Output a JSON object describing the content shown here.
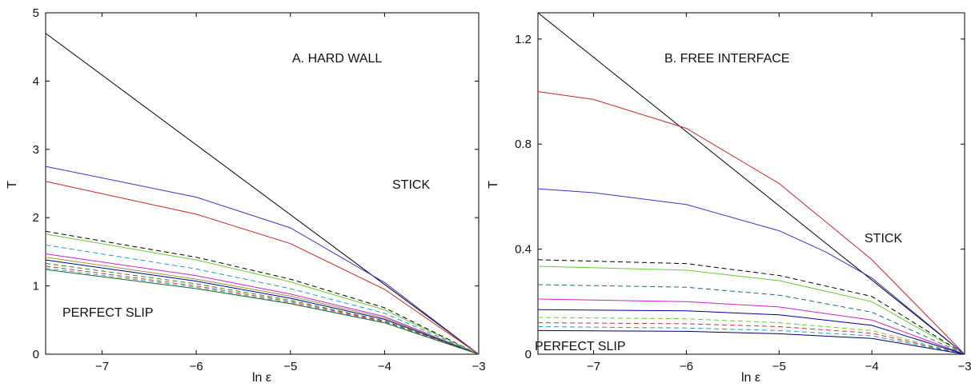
{
  "chart_data": [
    {
      "type": "line",
      "annotations": {
        "title": "A. HARD WALL",
        "top": "STICK",
        "bottom": "PERFECT SLIP"
      },
      "xlabel": "ln ε",
      "ylabel": "T",
      "xlim": [
        -7.6,
        -3
      ],
      "ylim": [
        0,
        5
      ],
      "xticks": [
        -7,
        -6,
        -5,
        -4,
        -3
      ],
      "xtick_labels": [
        "−7",
        "−6",
        "−5",
        "−4",
        "−3"
      ],
      "yticks": [
        0,
        1,
        2,
        3,
        4,
        5
      ],
      "ytick_labels": [
        "0",
        "1",
        "2",
        "3",
        "4",
        "5"
      ],
      "grid": false,
      "series": [
        {
          "color": "#000000",
          "dash": "solid",
          "x": [
            -7.6,
            -3
          ],
          "y": [
            4.7,
            0
          ]
        },
        {
          "color": "#3333cc",
          "dash": "solid",
          "x": [
            -7.6,
            -6,
            -5,
            -4,
            -3
          ],
          "y": [
            2.75,
            2.3,
            1.85,
            1.05,
            0
          ]
        },
        {
          "color": "#cc2222",
          "dash": "solid",
          "x": [
            -7.6,
            -6,
            -5,
            -4,
            -3
          ],
          "y": [
            2.53,
            2.05,
            1.62,
            0.95,
            0
          ]
        },
        {
          "color": "#000000",
          "dash": "dashed",
          "x": [
            -7.6,
            -6,
            -5,
            -4,
            -3
          ],
          "y": [
            1.8,
            1.42,
            1.1,
            0.68,
            0
          ]
        },
        {
          "color": "#66cc33",
          "dash": "solid",
          "x": [
            -7.6,
            -6,
            -5,
            -4,
            -3
          ],
          "y": [
            1.76,
            1.38,
            1.06,
            0.65,
            0
          ]
        },
        {
          "color": "#2299cc",
          "dash": "dashed",
          "x": [
            -7.6,
            -6,
            -5,
            -4,
            -3
          ],
          "y": [
            1.6,
            1.25,
            0.96,
            0.6,
            0
          ]
        },
        {
          "color": "#cc22cc",
          "dash": "solid",
          "x": [
            -7.6,
            -6,
            -5,
            -4,
            -3
          ],
          "y": [
            1.47,
            1.15,
            0.88,
            0.55,
            0
          ]
        },
        {
          "color": "#999933",
          "dash": "solid",
          "x": [
            -7.6,
            -6,
            -5,
            -4,
            -3
          ],
          "y": [
            1.42,
            1.1,
            0.85,
            0.53,
            0
          ]
        },
        {
          "color": "#000099",
          "dash": "solid",
          "x": [
            -7.6,
            -6,
            -5,
            -4,
            -3
          ],
          "y": [
            1.38,
            1.07,
            0.82,
            0.51,
            0
          ]
        },
        {
          "color": "#228822",
          "dash": "dashed",
          "x": [
            -7.6,
            -6,
            -5,
            -4,
            -3
          ],
          "y": [
            1.33,
            1.03,
            0.79,
            0.49,
            0
          ]
        },
        {
          "color": "#cc3333",
          "dash": "dashed",
          "x": [
            -7.6,
            -6,
            -5,
            -4,
            -3
          ],
          "y": [
            1.29,
            1.0,
            0.77,
            0.48,
            0
          ]
        },
        {
          "color": "#33aacc",
          "dash": "dashed",
          "x": [
            -7.6,
            -6,
            -5,
            -4,
            -3
          ],
          "y": [
            1.26,
            0.98,
            0.75,
            0.47,
            0
          ]
        },
        {
          "color": "#226622",
          "dash": "solid",
          "x": [
            -7.6,
            -6,
            -5,
            -4,
            -3
          ],
          "y": [
            1.24,
            0.96,
            0.74,
            0.46,
            0
          ]
        }
      ]
    },
    {
      "type": "line",
      "annotations": {
        "title": "B. FREE INTERFACE",
        "top": "STICK",
        "bottom": "PERFECT SLIP"
      },
      "xlabel": "ln ε",
      "ylabel": "T",
      "xlim": [
        -7.6,
        -3
      ],
      "ylim": [
        0,
        1.3
      ],
      "xticks": [
        -7,
        -6,
        -5,
        -4,
        -3
      ],
      "xtick_labels": [
        "−7",
        "−6",
        "−5",
        "−4",
        "−3"
      ],
      "yticks": [
        0,
        0.4,
        0.8,
        1.2
      ],
      "ytick_labels": [
        "0",
        "0.4",
        "0.8",
        "1.2"
      ],
      "grid": false,
      "series": [
        {
          "color": "#000000",
          "dash": "solid",
          "x": [
            -7.6,
            -3
          ],
          "y": [
            1.3,
            0
          ]
        },
        {
          "color": "#cc2222",
          "dash": "solid",
          "x": [
            -7.6,
            -7,
            -6,
            -5,
            -4,
            -3.5,
            -3
          ],
          "y": [
            1.0,
            0.97,
            0.86,
            0.65,
            0.36,
            0.18,
            0
          ]
        },
        {
          "color": "#3333cc",
          "dash": "solid",
          "x": [
            -7.6,
            -7,
            -6,
            -5,
            -4.5,
            -4,
            -3
          ],
          "y": [
            0.63,
            0.615,
            0.57,
            0.47,
            0.39,
            0.29,
            0
          ]
        },
        {
          "color": "#000000",
          "dash": "dashed",
          "x": [
            -7.6,
            -6,
            -5,
            -4,
            -3
          ],
          "y": [
            0.36,
            0.345,
            0.3,
            0.22,
            0
          ]
        },
        {
          "color": "#66cc33",
          "dash": "solid",
          "x": [
            -7.6,
            -6,
            -5,
            -4,
            -3
          ],
          "y": [
            0.335,
            0.32,
            0.28,
            0.2,
            0
          ]
        },
        {
          "color": "#226688",
          "dash": "dashed",
          "x": [
            -7.6,
            -6,
            -5,
            -4,
            -3
          ],
          "y": [
            0.265,
            0.255,
            0.225,
            0.16,
            0
          ]
        },
        {
          "color": "#cc22cc",
          "dash": "solid",
          "x": [
            -7.6,
            -6,
            -5,
            -4,
            -3
          ],
          "y": [
            0.21,
            0.2,
            0.18,
            0.13,
            0
          ]
        },
        {
          "color": "#000099",
          "dash": "solid",
          "x": [
            -7.6,
            -6,
            -5,
            -4,
            -3
          ],
          "y": [
            0.17,
            0.165,
            0.15,
            0.11,
            0
          ]
        },
        {
          "color": "#66cc33",
          "dash": "dashed",
          "x": [
            -7.6,
            -6,
            -5,
            -4,
            -3
          ],
          "y": [
            0.14,
            0.135,
            0.12,
            0.09,
            0
          ]
        },
        {
          "color": "#cc3333",
          "dash": "dashed",
          "x": [
            -7.6,
            -6,
            -5,
            -4,
            -3
          ],
          "y": [
            0.12,
            0.116,
            0.105,
            0.08,
            0
          ]
        },
        {
          "color": "#2299cc",
          "dash": "dashed",
          "x": [
            -7.6,
            -6,
            -5,
            -4,
            -3
          ],
          "y": [
            0.105,
            0.1,
            0.09,
            0.07,
            0
          ]
        },
        {
          "color": "#000066",
          "dash": "solid",
          "x": [
            -7.6,
            -6,
            -5,
            -4,
            -3
          ],
          "y": [
            0.09,
            0.087,
            0.078,
            0.06,
            0
          ]
        }
      ]
    }
  ]
}
